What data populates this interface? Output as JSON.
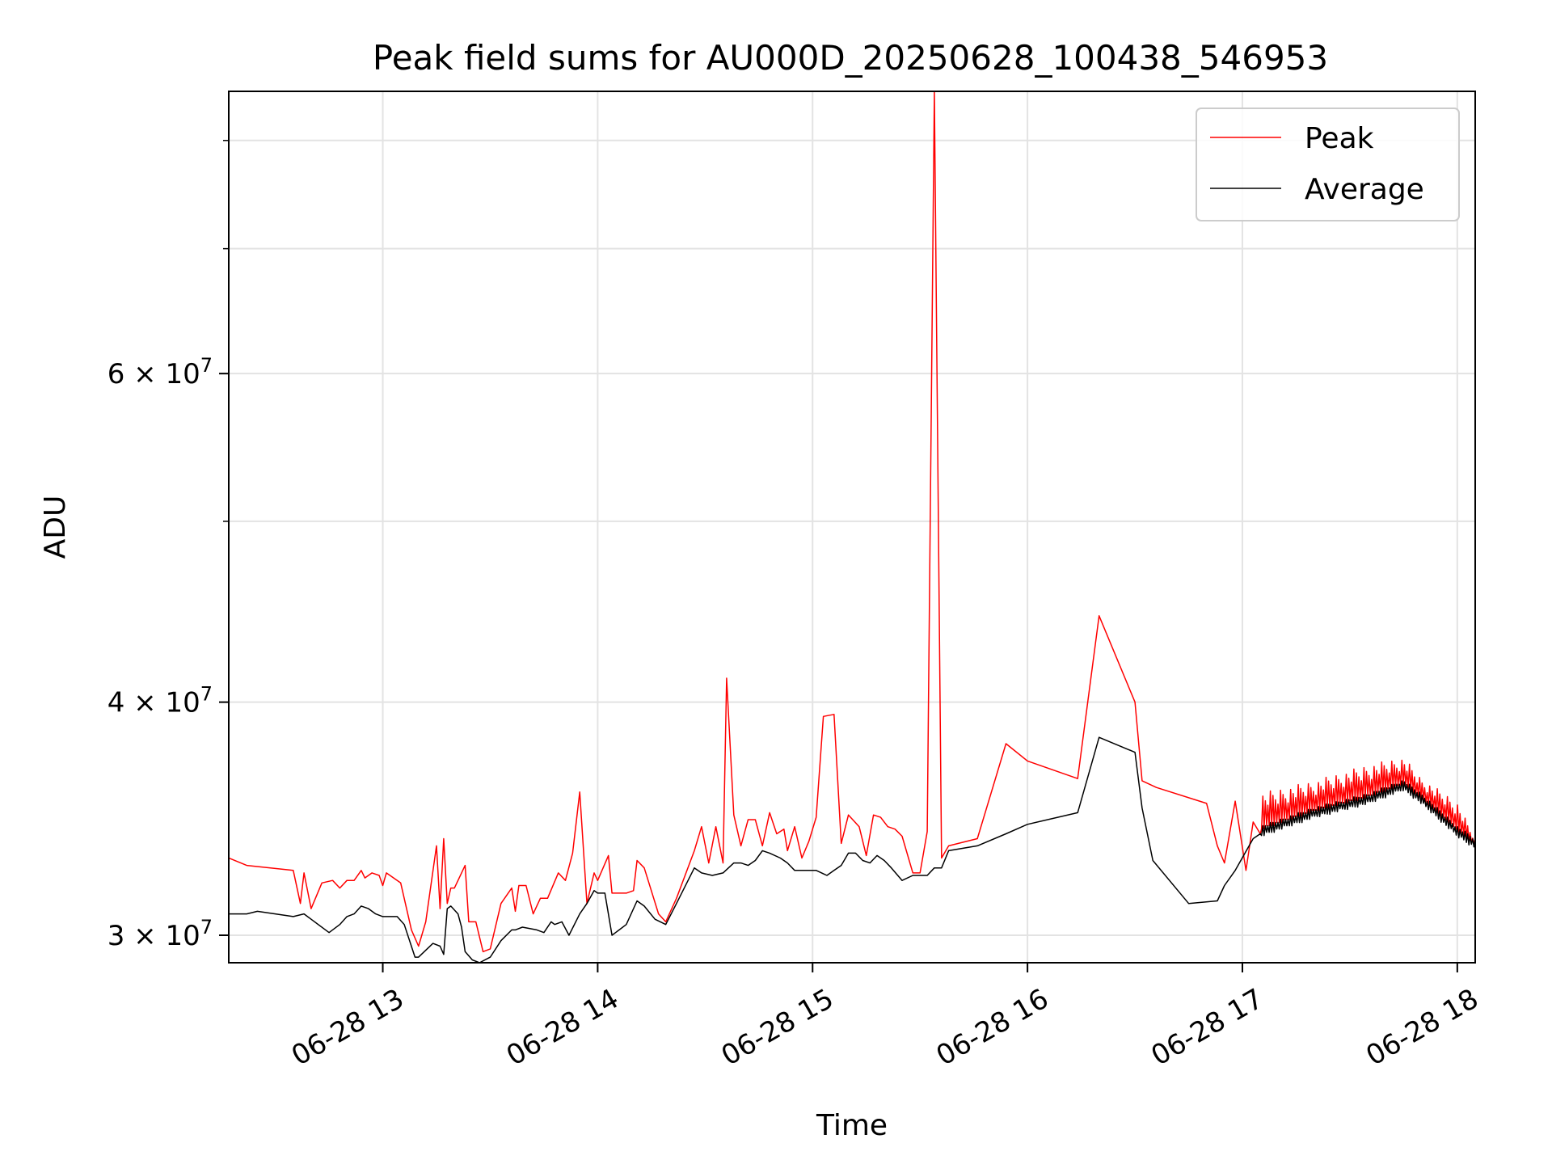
{
  "chart_data": {
    "type": "line",
    "title": "Peak field sums for AU000D_20250628_100438_546953",
    "xlabel": "Time",
    "ylabel": "ADU",
    "yscale": "log",
    "ylim": [
      29000000,
      85000000
    ],
    "xlim": [
      "06-28 12:17",
      "06-28 18:05"
    ],
    "x_tick_labels": [
      "06-28 13",
      "06-28 14",
      "06-28 15",
      "06-28 16",
      "06-28 17",
      "06-28 18"
    ],
    "x_tick_hours": [
      13,
      14,
      15,
      16,
      17,
      18
    ],
    "y_major_ticks": [
      {
        "value": 30000000,
        "mantissa": "3",
        "exp": "7"
      },
      {
        "value": 40000000,
        "mantissa": "4",
        "exp": "7"
      },
      {
        "value": 60000000,
        "mantissa": "6",
        "exp": "7"
      }
    ],
    "y_minor_ticks": [
      50000000,
      70000000,
      80000000
    ],
    "grid": true,
    "legend_position": "top-right",
    "series": [
      {
        "name": "Peak",
        "color": "#ff0000",
        "points": [
          [
            "12:17",
            33000000
          ],
          [
            "12:22",
            32700000
          ],
          [
            "12:35",
            32500000
          ],
          [
            "12:37",
            31200000
          ],
          [
            "12:38",
            32400000
          ],
          [
            "12:40",
            31000000
          ],
          [
            "12:43",
            32000000
          ],
          [
            "12:46",
            32100000
          ],
          [
            "12:48",
            31800000
          ],
          [
            "12:50",
            32100000
          ],
          [
            "12:52",
            32100000
          ],
          [
            "12:54",
            32500000
          ],
          [
            "12:55",
            32200000
          ],
          [
            "12:57",
            32400000
          ],
          [
            "12:59",
            32300000
          ],
          [
            "13:00",
            31900000
          ],
          [
            "13:01",
            32400000
          ],
          [
            "13:05",
            32000000
          ],
          [
            "13:08",
            30200000
          ],
          [
            "13:10",
            29600000
          ],
          [
            "13:12",
            30500000
          ],
          [
            "13:15",
            33500000
          ],
          [
            "13:16",
            31000000
          ],
          [
            "13:17",
            33800000
          ],
          [
            "13:18",
            31200000
          ],
          [
            "13:19",
            31800000
          ],
          [
            "13:20",
            31800000
          ],
          [
            "13:23",
            32700000
          ],
          [
            "13:24",
            30500000
          ],
          [
            "13:26",
            30500000
          ],
          [
            "13:28",
            29400000
          ],
          [
            "13:30",
            29500000
          ],
          [
            "13:33",
            31200000
          ],
          [
            "13:36",
            31800000
          ],
          [
            "13:37",
            30900000
          ],
          [
            "13:38",
            31900000
          ],
          [
            "13:40",
            31900000
          ],
          [
            "13:42",
            30800000
          ],
          [
            "13:44",
            31400000
          ],
          [
            "13:46",
            31400000
          ],
          [
            "13:49",
            32400000
          ],
          [
            "13:51",
            32100000
          ],
          [
            "13:53",
            33200000
          ],
          [
            "13:55",
            35800000
          ],
          [
            "13:57",
            31200000
          ],
          [
            "13:59",
            32400000
          ],
          [
            "14:00",
            32100000
          ],
          [
            "14:03",
            33100000
          ],
          [
            "14:04",
            31600000
          ],
          [
            "14:08",
            31600000
          ],
          [
            "14:10",
            31700000
          ],
          [
            "14:11",
            32900000
          ],
          [
            "14:13",
            32600000
          ],
          [
            "14:17",
            30800000
          ],
          [
            "14:19",
            30500000
          ],
          [
            "14:22",
            31400000
          ],
          [
            "14:27",
            33300000
          ],
          [
            "14:29",
            34300000
          ],
          [
            "14:31",
            32800000
          ],
          [
            "14:33",
            34300000
          ],
          [
            "14:35",
            32800000
          ],
          [
            "14:36",
            41200000
          ],
          [
            "14:38",
            34800000
          ],
          [
            "14:40",
            33500000
          ],
          [
            "14:42",
            34600000
          ],
          [
            "14:44",
            34600000
          ],
          [
            "14:46",
            33500000
          ],
          [
            "14:48",
            34900000
          ],
          [
            "14:50",
            34000000
          ],
          [
            "14:52",
            34200000
          ],
          [
            "14:53",
            33300000
          ],
          [
            "14:55",
            34300000
          ],
          [
            "14:57",
            33000000
          ],
          [
            "14:59",
            33700000
          ],
          [
            "15:01",
            34700000
          ],
          [
            "15:03",
            39300000
          ],
          [
            "15:06",
            39400000
          ],
          [
            "15:08",
            33600000
          ],
          [
            "15:10",
            34800000
          ],
          [
            "15:13",
            34300000
          ],
          [
            "15:15",
            33100000
          ],
          [
            "15:17",
            34800000
          ],
          [
            "15:19",
            34700000
          ],
          [
            "15:21",
            34300000
          ],
          [
            "15:23",
            34200000
          ],
          [
            "15:25",
            33900000
          ],
          [
            "15:28",
            32400000
          ],
          [
            "15:30",
            32400000
          ],
          [
            "15:32",
            34100000
          ],
          [
            "15:34",
            85000000
          ],
          [
            "15:36",
            33000000
          ],
          [
            "15:38",
            33500000
          ],
          [
            "15:46",
            33800000
          ],
          [
            "15:54",
            38000000
          ],
          [
            "16:00",
            37200000
          ],
          [
            "16:14",
            36400000
          ],
          [
            "16:20",
            44500000
          ],
          [
            "16:30",
            40000000
          ],
          [
            "16:32",
            36300000
          ],
          [
            "16:36",
            36000000
          ],
          [
            "16:50",
            35300000
          ],
          [
            "16:53",
            33500000
          ],
          [
            "16:55",
            32800000
          ],
          [
            "16:58",
            35400000
          ],
          [
            "17:01",
            32500000
          ],
          [
            "17:03",
            34500000
          ],
          [
            "17:05",
            34000000
          ]
        ]
      },
      {
        "name": "Average",
        "color": "#000000",
        "points": [
          [
            "12:17",
            30800000
          ],
          [
            "12:22",
            30800000
          ],
          [
            "12:25",
            30900000
          ],
          [
            "12:35",
            30700000
          ],
          [
            "12:38",
            30800000
          ],
          [
            "12:40",
            30600000
          ],
          [
            "12:45",
            30100000
          ],
          [
            "12:48",
            30400000
          ],
          [
            "12:50",
            30700000
          ],
          [
            "12:52",
            30800000
          ],
          [
            "12:54",
            31100000
          ],
          [
            "12:56",
            31000000
          ],
          [
            "12:58",
            30800000
          ],
          [
            "13:00",
            30700000
          ],
          [
            "13:02",
            30700000
          ],
          [
            "13:04",
            30700000
          ],
          [
            "13:06",
            30400000
          ],
          [
            "13:09",
            29200000
          ],
          [
            "13:10",
            29200000
          ],
          [
            "13:14",
            29700000
          ],
          [
            "13:16",
            29600000
          ],
          [
            "13:17",
            29300000
          ],
          [
            "13:18",
            31000000
          ],
          [
            "13:19",
            31100000
          ],
          [
            "13:21",
            30800000
          ],
          [
            "13:22",
            30300000
          ],
          [
            "13:23",
            29400000
          ],
          [
            "13:25",
            29100000
          ],
          [
            "13:27",
            29000000
          ],
          [
            "13:30",
            29200000
          ],
          [
            "13:33",
            29800000
          ],
          [
            "13:36",
            30200000
          ],
          [
            "13:37",
            30200000
          ],
          [
            "13:39",
            30300000
          ],
          [
            "13:43",
            30200000
          ],
          [
            "13:45",
            30100000
          ],
          [
            "13:47",
            30500000
          ],
          [
            "13:48",
            30400000
          ],
          [
            "13:50",
            30500000
          ],
          [
            "13:52",
            30000000
          ],
          [
            "13:55",
            30800000
          ],
          [
            "13:57",
            31200000
          ],
          [
            "13:59",
            31700000
          ],
          [
            "14:00",
            31600000
          ],
          [
            "14:02",
            31600000
          ],
          [
            "14:04",
            30000000
          ],
          [
            "14:06",
            30200000
          ],
          [
            "14:08",
            30400000
          ],
          [
            "14:11",
            31300000
          ],
          [
            "14:13",
            31100000
          ],
          [
            "14:16",
            30600000
          ],
          [
            "14:19",
            30400000
          ],
          [
            "14:22",
            31200000
          ],
          [
            "14:27",
            32600000
          ],
          [
            "14:29",
            32400000
          ],
          [
            "14:32",
            32300000
          ],
          [
            "14:35",
            32400000
          ],
          [
            "14:38",
            32800000
          ],
          [
            "14:40",
            32800000
          ],
          [
            "14:42",
            32700000
          ],
          [
            "14:44",
            32900000
          ],
          [
            "14:46",
            33300000
          ],
          [
            "14:48",
            33200000
          ],
          [
            "14:51",
            33000000
          ],
          [
            "14:53",
            32800000
          ],
          [
            "14:55",
            32500000
          ],
          [
            "14:57",
            32500000
          ],
          [
            "15:01",
            32500000
          ],
          [
            "15:04",
            32300000
          ],
          [
            "15:06",
            32500000
          ],
          [
            "15:08",
            32700000
          ],
          [
            "15:10",
            33200000
          ],
          [
            "15:12",
            33200000
          ],
          [
            "15:14",
            32900000
          ],
          [
            "15:16",
            32800000
          ],
          [
            "15:18",
            33100000
          ],
          [
            "15:20",
            32900000
          ],
          [
            "15:22",
            32600000
          ],
          [
            "15:25",
            32100000
          ],
          [
            "15:28",
            32300000
          ],
          [
            "15:30",
            32300000
          ],
          [
            "15:32",
            32300000
          ],
          [
            "15:34",
            32600000
          ],
          [
            "15:36",
            32600000
          ],
          [
            "15:38",
            33300000
          ],
          [
            "15:46",
            33500000
          ],
          [
            "15:54",
            34000000
          ],
          [
            "16:00",
            34400000
          ],
          [
            "16:14",
            34900000
          ],
          [
            "16:20",
            38300000
          ],
          [
            "16:30",
            37600000
          ],
          [
            "16:32",
            35100000
          ],
          [
            "16:35",
            32900000
          ],
          [
            "16:45",
            31200000
          ],
          [
            "16:53",
            31300000
          ],
          [
            "16:55",
            31900000
          ],
          [
            "16:58",
            32500000
          ],
          [
            "17:03",
            33800000
          ],
          [
            "17:05",
            34000000
          ]
        ]
      }
    ],
    "dense_segment": {
      "from": "17:05",
      "to": "18:05",
      "average_envelope": [
        [
          "17:05",
          34000000
        ],
        [
          "17:20",
          34800000
        ],
        [
          "17:35",
          35400000
        ],
        [
          "17:45",
          36000000
        ],
        [
          "17:50",
          35400000
        ],
        [
          "18:00",
          34000000
        ],
        [
          "18:05",
          33500000
        ]
      ],
      "peak_envelope": [
        [
          "17:05",
          35400000
        ],
        [
          "17:20",
          36000000
        ],
        [
          "17:35",
          36700000
        ],
        [
          "17:45",
          37100000
        ],
        [
          "17:50",
          36200000
        ],
        [
          "18:00",
          35100000
        ],
        [
          "18:05",
          33700000
        ]
      ]
    }
  }
}
